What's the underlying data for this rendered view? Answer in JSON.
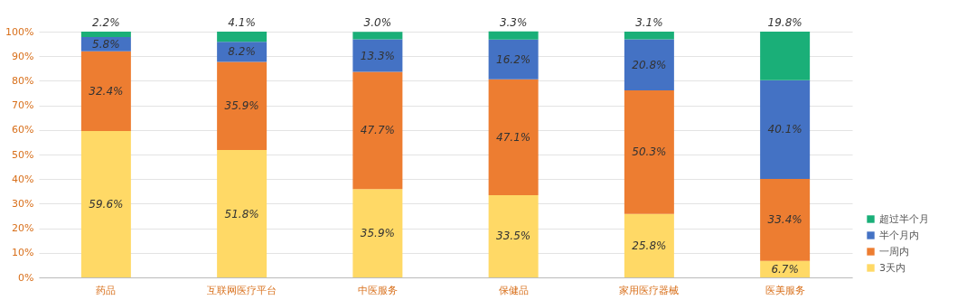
{
  "chart_data": {
    "type": "bar",
    "stacked": true,
    "categories": [
      "药品",
      "互联网医疗平台",
      "中医服务",
      "保健品",
      "家用医疗器械",
      "医美服务"
    ],
    "series": [
      {
        "name": "3天内",
        "color": "#ffd966",
        "values": [
          59.6,
          51.8,
          35.9,
          33.5,
          25.8,
          6.7
        ],
        "value_labels": [
          "59.6%",
          "51.8%",
          "35.9%",
          "33.5%",
          "25.8%",
          "6.7%"
        ]
      },
      {
        "name": "一周内",
        "color": "#ed7d31",
        "values": [
          32.4,
          35.9,
          47.7,
          47.1,
          50.3,
          33.4
        ],
        "value_labels": [
          "32.4%",
          "35.9%",
          "47.7%",
          "47.1%",
          "50.3%",
          "33.4%"
        ]
      },
      {
        "name": "半个月内",
        "color": "#4472c4",
        "values": [
          5.8,
          8.2,
          13.3,
          16.2,
          20.8,
          40.1
        ],
        "value_labels": [
          "5.8%",
          "8.2%",
          "13.3%",
          "16.2%",
          "20.8%",
          "40.1%"
        ]
      },
      {
        "name": "超过半个月",
        "color": "#1aaf78",
        "values": [
          2.2,
          4.1,
          3.0,
          3.3,
          3.1,
          19.8
        ],
        "value_labels": [
          "2.2%",
          "4.1%",
          "3.0%",
          "3.3%",
          "3.1%",
          "19.8%"
        ]
      }
    ],
    "ylim": [
      0,
      100
    ],
    "yticks": [
      {
        "value": 0,
        "label": "0%"
      },
      {
        "value": 10,
        "label": "10%"
      },
      {
        "value": 20,
        "label": "20%"
      },
      {
        "value": 30,
        "label": "30%"
      },
      {
        "value": 40,
        "label": "40%"
      },
      {
        "value": 50,
        "label": "50%"
      },
      {
        "value": 60,
        "label": "60%"
      },
      {
        "value": 70,
        "label": "70%"
      },
      {
        "value": 80,
        "label": "80%"
      },
      {
        "value": 90,
        "label": "90%"
      },
      {
        "value": 100,
        "label": "100%"
      }
    ],
    "grid": "y",
    "legend": "bottom right"
  }
}
